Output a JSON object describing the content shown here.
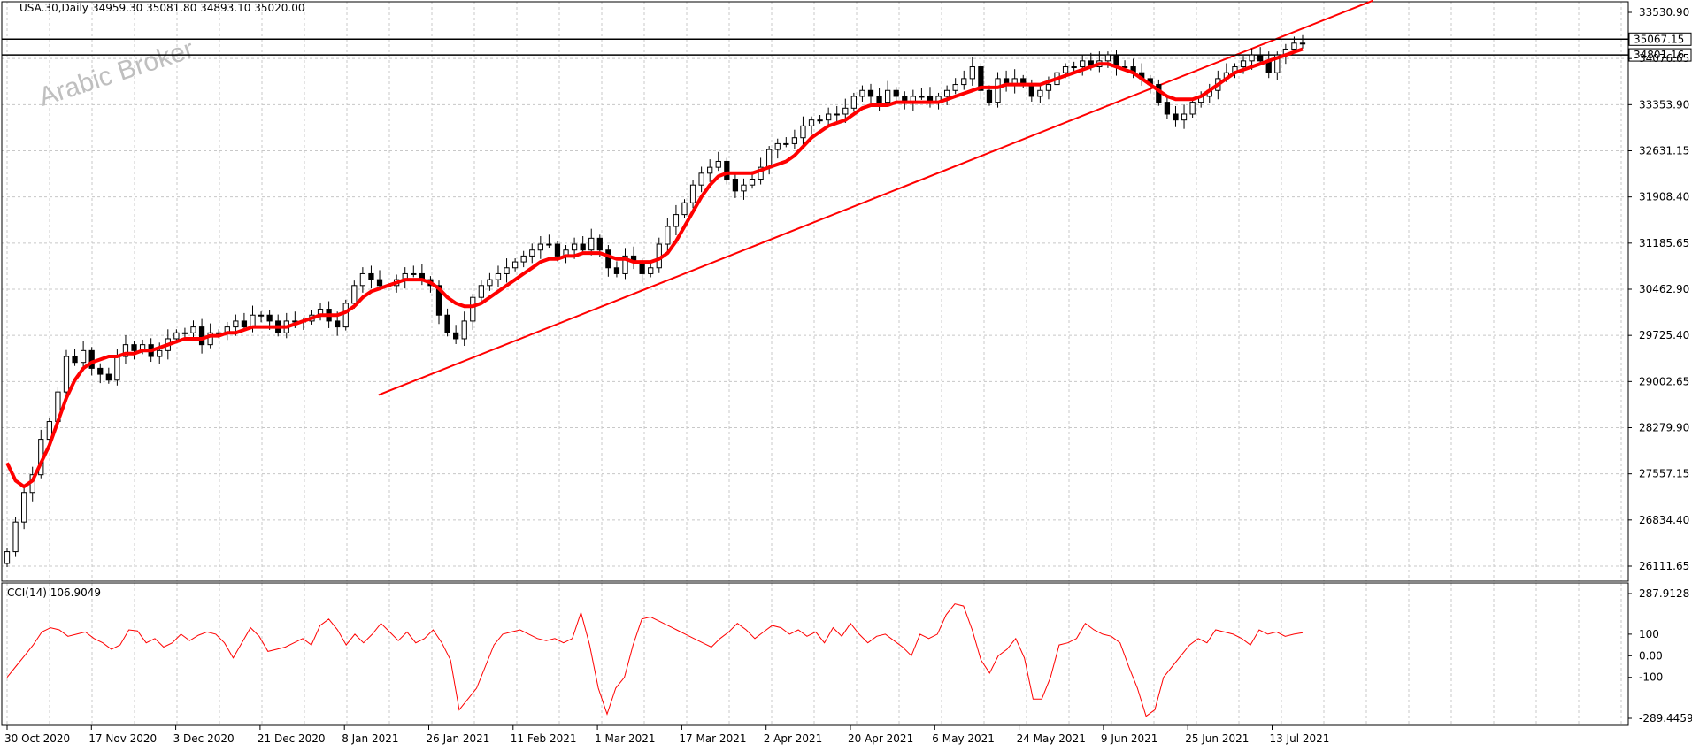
{
  "header": {
    "symbol": "USA.30,Daily",
    "ohlc": "34959.30 35081.80 34893.10 35020.00"
  },
  "watermark": {
    "text": "Arabic Broker"
  },
  "main_panel": {
    "price_labels": [
      "33530.90",
      "34076.65",
      "33353.90",
      "32631.15",
      "31908.40",
      "31185.65",
      "30462.90",
      "29725.40",
      "29002.65",
      "28279.90",
      "27557.15",
      "26834.40",
      "26111.65"
    ],
    "hline_labels": [
      "35067.15",
      "34801.16"
    ]
  },
  "sub_panel": {
    "title": "CCI(14) 106.9049",
    "axis_labels": [
      "287.9128",
      "100",
      "0.00",
      "-100",
      "-289.4459"
    ]
  },
  "x_axis": {
    "labels": [
      "30 Oct 2020",
      "17 Nov 2020",
      "3 Dec 2020",
      "21 Dec 2020",
      "8 Jan 2021",
      "26 Jan 2021",
      "11 Feb 2021",
      "1 Mar 2021",
      "17 Mar 2021",
      "2 Apr 2021",
      "20 Apr 2021",
      "6 May 2021",
      "24 May 2021",
      "9 Jun 2021",
      "25 Jun 2021",
      "13 Jul 2021"
    ]
  },
  "colors": {
    "ma_line": "#ff0000",
    "trendline": "#ff0000",
    "cci_line": "#ff0000",
    "grid": "#c8c8c8",
    "candle_up": "#ffffff",
    "candle_down": "#000000"
  },
  "chart_data": [
    {
      "type": "candlestick",
      "symbol": "USA.30",
      "timeframe": "Daily",
      "x_range": [
        "2020-10-30",
        "2021-07-15"
      ],
      "ylim": [
        25900,
        35700
      ],
      "close": [
        26400,
        26900,
        27400,
        27700,
        28300,
        28600,
        29100,
        29700,
        29600,
        29800,
        29500,
        29400,
        29300,
        29700,
        29900,
        29800,
        29900,
        29700,
        29800,
        30000,
        30100,
        30100,
        30200,
        29900,
        30100,
        30100,
        30200,
        30300,
        30200,
        30400,
        30400,
        30300,
        30100,
        30300,
        30300,
        30300,
        30400,
        30500,
        30300,
        30200,
        30600,
        30900,
        31100,
        31000,
        30900,
        30900,
        31000,
        31100,
        31100,
        31000,
        30900,
        30400,
        30100,
        30000,
        30300,
        30700,
        30900,
        31000,
        31100,
        31200,
        31300,
        31400,
        31500,
        31600,
        31600,
        31400,
        31500,
        31600,
        31500,
        31700,
        31500,
        31200,
        31100,
        31400,
        31300,
        31100,
        31200,
        31600,
        31900,
        32100,
        32300,
        32600,
        32800,
        32900,
        33000,
        32700,
        32500,
        32600,
        32700,
        32900,
        33200,
        33300,
        33300,
        33400,
        33600,
        33700,
        33700,
        33800,
        33800,
        33900,
        34100,
        34200,
        34100,
        34000,
        34200,
        34100,
        34000,
        34100,
        34100,
        34000,
        34100,
        34200,
        34300,
        34400,
        34600,
        34200,
        34000,
        34400,
        34300,
        34400,
        34300,
        34100,
        34200,
        34300,
        34500,
        34600,
        34600,
        34700,
        34600,
        34700,
        34800,
        34600,
        34600,
        34500,
        34400,
        34300,
        34000,
        33800,
        33700,
        33800,
        34000,
        34100,
        34200,
        34400,
        34500,
        34600,
        34700,
        34800,
        34700,
        34500,
        34800,
        34900,
        35000,
        35000
      ],
      "trendline": {
        "start": {
          "x": "2021-01-12",
          "y": 29050
        },
        "end": {
          "x": "2021-07-29",
          "y": 35720
        }
      },
      "moving_average": {
        "color": "#ff0000",
        "values": [
          27900,
          27600,
          27500,
          27600,
          27900,
          28200,
          28600,
          29000,
          29300,
          29500,
          29600,
          29650,
          29700,
          29700,
          29750,
          29750,
          29800,
          29800,
          29850,
          29900,
          29950,
          30000,
          30000,
          30000,
          30050,
          30050,
          30100,
          30100,
          30150,
          30200,
          30200,
          30200,
          30200,
          30200,
          30250,
          30300,
          30350,
          30400,
          30400,
          30400,
          30450,
          30550,
          30700,
          30800,
          30850,
          30900,
          30950,
          31000,
          31000,
          31000,
          30950,
          30850,
          30700,
          30600,
          30550,
          30550,
          30600,
          30700,
          30800,
          30900,
          31000,
          31100,
          31200,
          31300,
          31350,
          31350,
          31400,
          31400,
          31450,
          31450,
          31450,
          31400,
          31350,
          31350,
          31300,
          31300,
          31300,
          31350,
          31450,
          31650,
          31900,
          32150,
          32400,
          32600,
          32750,
          32800,
          32800,
          32800,
          32800,
          32850,
          32900,
          32950,
          33000,
          33100,
          33250,
          33400,
          33500,
          33600,
          33650,
          33700,
          33800,
          33900,
          33950,
          33950,
          33950,
          34000,
          34000,
          34000,
          34000,
          34000,
          34000,
          34050,
          34100,
          34150,
          34200,
          34250,
          34250,
          34250,
          34300,
          34300,
          34300,
          34300,
          34300,
          34350,
          34400,
          34450,
          34500,
          34550,
          34600,
          34650,
          34650,
          34600,
          34550,
          34500,
          34400,
          34300,
          34200,
          34100,
          34050,
          34050,
          34050,
          34100,
          34200,
          34300,
          34400,
          34500,
          34550,
          34600,
          34650,
          34700,
          34750,
          34800,
          34850,
          34900
        ]
      },
      "horizontal_lines": [
        35067.15,
        34801.16
      ]
    },
    {
      "type": "line",
      "name": "CCI(14)",
      "ylim": [
        -289.4459,
        287.9128
      ],
      "values": [
        -100,
        -50,
        0,
        50,
        110,
        130,
        120,
        90,
        100,
        110,
        80,
        60,
        30,
        50,
        120,
        115,
        60,
        80,
        40,
        60,
        100,
        70,
        95,
        110,
        100,
        60,
        -10,
        60,
        130,
        90,
        20,
        30,
        40,
        60,
        80,
        50,
        140,
        170,
        120,
        50,
        100,
        60,
        100,
        150,
        110,
        70,
        110,
        60,
        80,
        120,
        60,
        -20,
        -250,
        -200,
        -150,
        -50,
        50,
        100,
        110,
        120,
        100,
        80,
        70,
        80,
        60,
        80,
        200,
        50,
        -150,
        -270,
        -150,
        -100,
        50,
        170,
        180,
        160,
        140,
        120,
        100,
        80,
        60,
        40,
        80,
        110,
        150,
        120,
        80,
        110,
        140,
        130,
        100,
        120,
        90,
        110,
        60,
        130,
        90,
        150,
        100,
        60,
        90,
        100,
        70,
        40,
        0,
        100,
        80,
        100,
        190,
        240,
        230,
        120,
        -20,
        -80,
        0,
        30,
        80,
        -10,
        -200,
        -200,
        -100,
        50,
        60,
        80,
        150,
        120,
        100,
        90,
        60,
        -50,
        -150,
        -280,
        -250,
        -100,
        -50,
        0,
        50,
        80,
        60,
        120,
        110,
        100,
        80,
        50,
        120,
        100,
        110,
        90,
        100,
        106.9
      ]
    }
  ]
}
